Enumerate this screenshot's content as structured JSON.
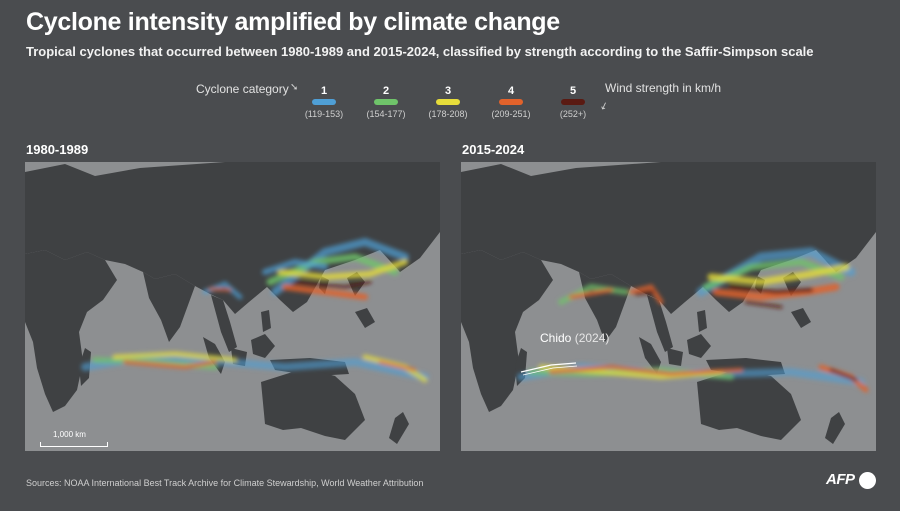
{
  "header": {
    "title": "Cyclone intensity amplified by climate change",
    "subtitle": "Tropical cyclones that occurred between 1980-1989 and 2015-2024, classified by strength according to the Saffir-Simpson scale"
  },
  "legend": {
    "title": "Cyclone category",
    "wind_label": "Wind strength in km/h",
    "categories": [
      {
        "num": "1",
        "range": "(119-153)",
        "color": "#4f9fd6"
      },
      {
        "num": "2",
        "range": "(154-177)",
        "color": "#6fc46a"
      },
      {
        "num": "3",
        "range": "(178-208)",
        "color": "#e6dc3a"
      },
      {
        "num": "4",
        "range": "(209-251)",
        "color": "#e2622b"
      },
      {
        "num": "5",
        "range": "(252+)",
        "color": "#5a1a12"
      }
    ]
  },
  "panels": [
    {
      "label": "1980-1989",
      "scale_label": "1,000 km"
    },
    {
      "label": "2015-2024",
      "annotation": {
        "name": "Chido",
        "year": "(2024)"
      }
    }
  ],
  "colors": {
    "land": "#3f4143",
    "sea": "#8d8f91",
    "background": "#4a4c4f"
  },
  "footer": {
    "source": "Sources: NOAA International Best Track Archive for Climate Stewardship, World Weather Attribution",
    "logo": "AFP"
  }
}
